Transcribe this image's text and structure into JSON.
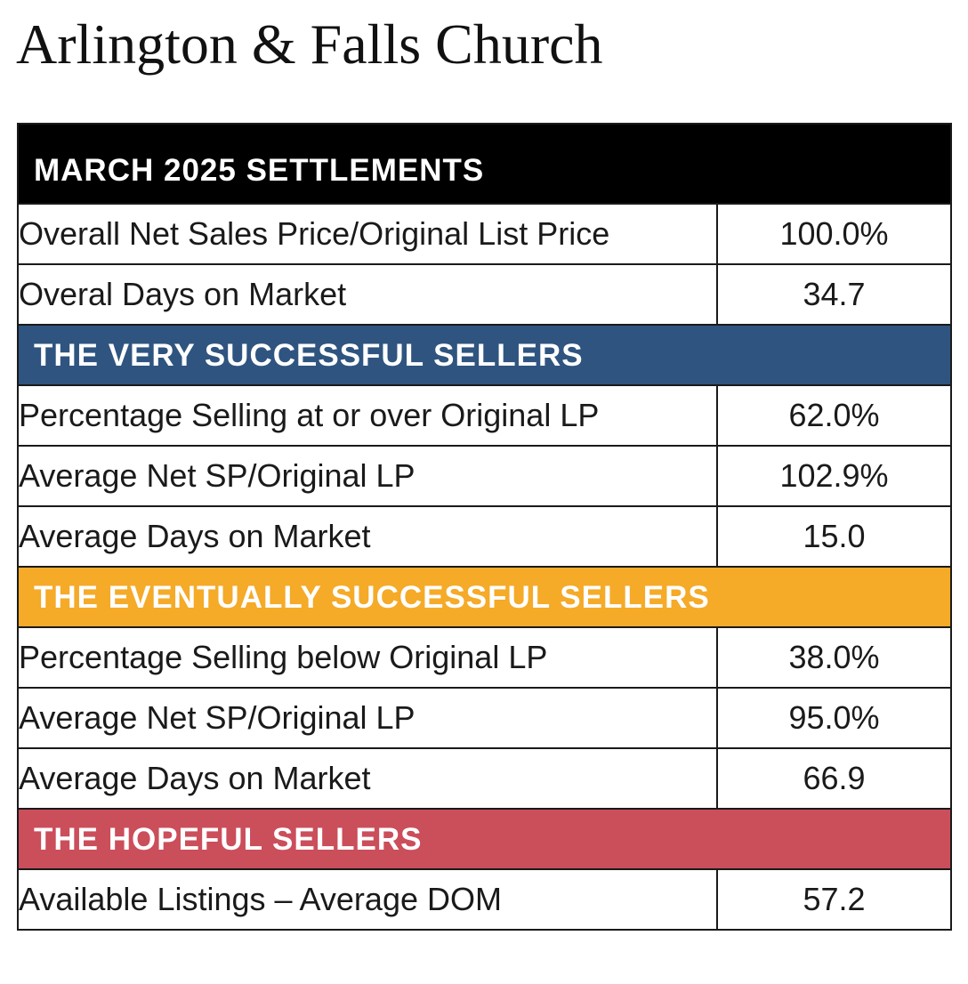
{
  "page": {
    "title": "Arlington & Falls Church"
  },
  "sections": {
    "settlements": {
      "title": "MARCH 2025 SETTLEMENTS",
      "color": "#000000",
      "rows": [
        {
          "label": "Overall Net Sales Price/Original List Price",
          "value": "100.0%"
        },
        {
          "label": "Overal Days on Market",
          "value": "34.7"
        }
      ]
    },
    "very_successful": {
      "title": "THE VERY SUCCESSFUL SELLERS",
      "color": "#2f5480",
      "rows": [
        {
          "label": "Percentage Selling at or over Original LP",
          "value": "62.0%"
        },
        {
          "label": "Average Net SP/Original LP",
          "value": "102.9%"
        },
        {
          "label": "Average Days on Market",
          "value": "15.0"
        }
      ]
    },
    "eventually_successful": {
      "title": "THE EVENTUALLY SUCCESSFUL SELLERS",
      "color": "#f5aa28",
      "rows": [
        {
          "label": "Percentage Selling below Original LP",
          "value": "38.0%"
        },
        {
          "label": "Average Net SP/Original LP",
          "value": "95.0%"
        },
        {
          "label": "Average Days on Market",
          "value": "66.9"
        }
      ]
    },
    "hopeful": {
      "title": "THE HOPEFUL SELLERS",
      "color": "#cb4e5b",
      "rows": [
        {
          "label": "Available Listings – Average DOM",
          "value": "57.2"
        }
      ]
    }
  }
}
